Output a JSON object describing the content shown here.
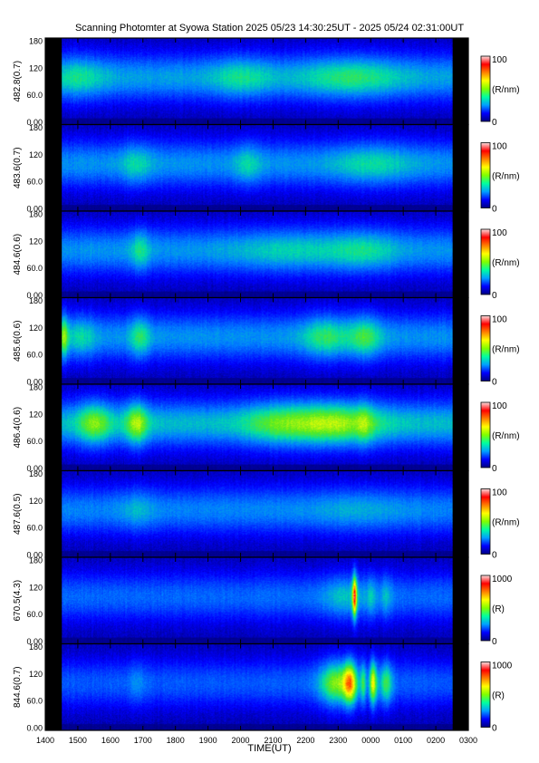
{
  "title": "Scanning Photomter at Syowa Station 2025 05/23 14:30:25UT - 2025 05/24 02:31:00UT",
  "chart_data": {
    "type": "heatmap",
    "xlabel": "TIME(UT)",
    "x_ticks": [
      "1400",
      "1500",
      "1600",
      "1700",
      "1800",
      "1900",
      "2000",
      "2100",
      "2200",
      "2300",
      "0000",
      "0100",
      "0200",
      "0300"
    ],
    "y_ticks": [
      "0.00",
      "60.0",
      "120",
      "180"
    ],
    "data_start": "14:30:25",
    "data_end": "02:31:00",
    "colorbar_colors": [
      "#000080",
      "#0000ff",
      "#00a0ff",
      "#00ffa0",
      "#80ff00",
      "#ffff00",
      "#ff8000",
      "#ff0000",
      "#ffe0e0"
    ],
    "panels": [
      {
        "ylabel": "482.8(0.7)",
        "unit": "(R/nm)",
        "cmin": "0",
        "cmax": "100",
        "base": 0.3,
        "events": [
          {
            "t": 15.0,
            "w": 0.8,
            "a": 0.12
          },
          {
            "t": 20.0,
            "w": 0.9,
            "a": 0.12
          },
          {
            "t": 23.4,
            "w": 1.5,
            "a": 0.15
          }
        ]
      },
      {
        "ylabel": "483.6(0.7)",
        "unit": "(R/nm)",
        "cmin": "0",
        "cmax": "100",
        "base": 0.28,
        "events": [
          {
            "t": 16.8,
            "w": 0.5,
            "a": 0.12
          },
          {
            "t": 20.2,
            "w": 0.4,
            "a": 0.12
          },
          {
            "t": 24.0,
            "w": 1.2,
            "a": 0.12
          }
        ]
      },
      {
        "ylabel": "484.6(0.6)",
        "unit": "(R/nm)",
        "cmin": "0",
        "cmax": "100",
        "base": 0.28,
        "events": [
          {
            "t": 16.9,
            "w": 0.3,
            "a": 0.15
          },
          {
            "t": 21.5,
            "w": 1.8,
            "a": 0.1
          },
          {
            "t": 23.8,
            "w": 1.0,
            "a": 0.12
          }
        ]
      },
      {
        "ylabel": "485.6(0.6)",
        "unit": "(R/nm)",
        "cmin": "0",
        "cmax": "100",
        "base": 0.28,
        "events": [
          {
            "t": 14.55,
            "w": 0.15,
            "a": 0.28
          },
          {
            "t": 15.1,
            "w": 0.4,
            "a": 0.12
          },
          {
            "t": 16.9,
            "w": 0.3,
            "a": 0.18
          },
          {
            "t": 22.6,
            "w": 0.7,
            "a": 0.18
          },
          {
            "t": 23.8,
            "w": 0.5,
            "a": 0.2
          }
        ]
      },
      {
        "ylabel": "486.4(0.6)",
        "unit": "(R/nm)",
        "cmin": "0",
        "cmax": "100",
        "base": 0.34,
        "events": [
          {
            "t": 15.5,
            "w": 0.5,
            "a": 0.22
          },
          {
            "t": 16.8,
            "w": 0.35,
            "a": 0.26
          },
          {
            "t": 21.0,
            "w": 1.0,
            "a": 0.14
          },
          {
            "t": 22.8,
            "w": 1.4,
            "a": 0.26
          },
          {
            "t": 23.8,
            "w": 0.25,
            "a": 0.1
          }
        ]
      },
      {
        "ylabel": "487.6(0.5)",
        "unit": "(R/nm)",
        "cmin": "0",
        "cmax": "100",
        "base": 0.26,
        "events": [
          {
            "t": 16.8,
            "w": 0.5,
            "a": 0.08
          },
          {
            "t": 23.5,
            "w": 1.5,
            "a": 0.06
          }
        ]
      },
      {
        "ylabel": "670.5(4.3)",
        "unit": "(R)",
        "cmin": "0",
        "cmax": "1000",
        "base": 0.22,
        "events": [
          {
            "t": 23.2,
            "w": 0.7,
            "a": 0.14
          },
          {
            "t": 23.48,
            "w": 0.07,
            "a": 0.55
          },
          {
            "t": 24.0,
            "w": 0.14,
            "a": 0.12
          },
          {
            "t": 24.45,
            "w": 0.2,
            "a": 0.12
          }
        ]
      },
      {
        "ylabel": "844.6(0.7)",
        "unit": "(R)",
        "cmin": "0",
        "cmax": "1000",
        "base": 0.2,
        "events": [
          {
            "t": 16.8,
            "w": 0.25,
            "a": 0.08
          },
          {
            "t": 22.9,
            "w": 0.5,
            "a": 0.35
          },
          {
            "t": 23.35,
            "w": 0.22,
            "a": 0.45
          },
          {
            "t": 23.75,
            "w": 0.08,
            "a": 0.25
          },
          {
            "t": 24.05,
            "w": 0.12,
            "a": 0.45
          },
          {
            "t": 24.45,
            "w": 0.2,
            "a": 0.28
          }
        ]
      }
    ]
  }
}
